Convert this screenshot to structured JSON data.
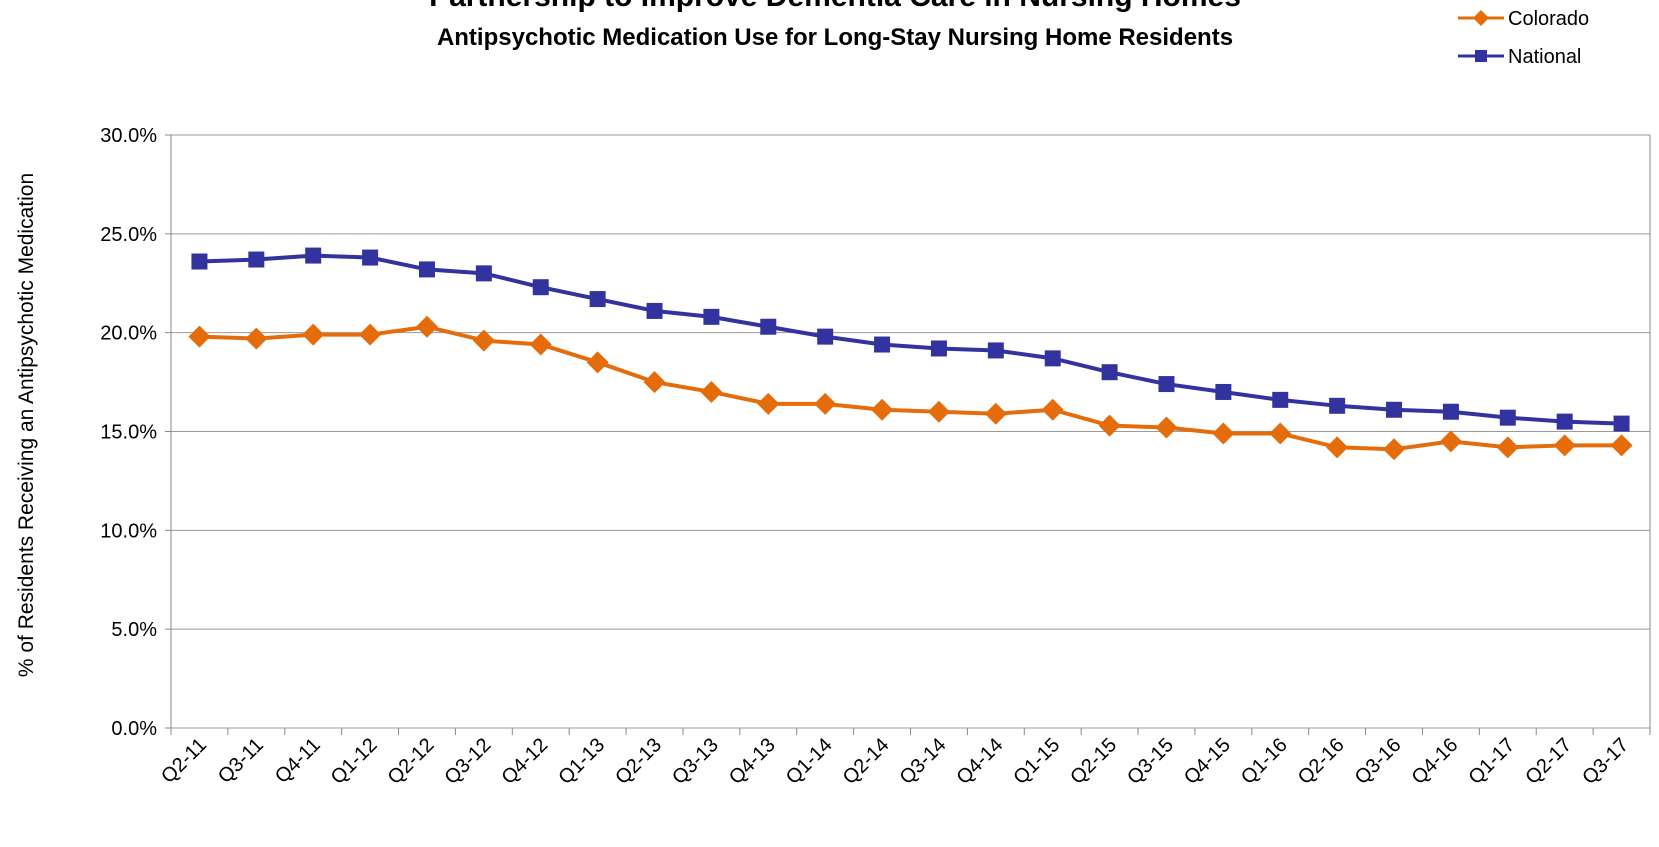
{
  "chart_data": {
    "type": "line",
    "title": "Partnership to Improve Dementia Care in Nursing Homes",
    "subtitle": "Antipsychotic Medication Use for Long-Stay Nursing Home Residents",
    "y_label": "% of  Residents Receiving an Antipsychotic Medication",
    "categories": [
      "Q2-11",
      "Q3-11",
      "Q4-11",
      "Q1-12",
      "Q2-12",
      "Q3-12",
      "Q4-12",
      "Q1-13",
      "Q2-13",
      "Q3-13",
      "Q4-13",
      "Q1-14",
      "Q2-14",
      "Q3-14",
      "Q4-14",
      "Q1-15",
      "Q2-15",
      "Q3-15",
      "Q4-15",
      "Q1-16",
      "Q2-16",
      "Q3-16",
      "Q4-16",
      "Q1-17",
      "Q2-17",
      "Q3-17"
    ],
    "series": [
      {
        "name": "Colorado",
        "color": "#e46c0a",
        "marker": "diamond",
        "values": [
          19.8,
          19.7,
          19.9,
          19.9,
          20.3,
          19.6,
          19.4,
          18.5,
          17.5,
          17.0,
          16.4,
          16.4,
          16.1,
          16.0,
          15.9,
          16.1,
          15.3,
          15.2,
          14.9,
          14.9,
          14.2,
          14.1,
          14.5,
          14.2,
          14.3,
          14.3
        ]
      },
      {
        "name": "National",
        "color": "#3333a0",
        "marker": "square",
        "values": [
          23.6,
          23.7,
          23.9,
          23.8,
          23.2,
          23.0,
          22.3,
          21.7,
          21.1,
          20.8,
          20.3,
          19.8,
          19.4,
          19.2,
          19.1,
          18.7,
          18.0,
          17.4,
          17.0,
          16.6,
          16.3,
          16.1,
          16.0,
          15.7,
          15.5,
          15.4
        ]
      }
    ],
    "ylim": [
      0,
      30
    ],
    "yticks": [
      {
        "value": 0,
        "label": "0.0%"
      },
      {
        "value": 5,
        "label": "5.0%"
      },
      {
        "value": 10,
        "label": "10.0%"
      },
      {
        "value": 15,
        "label": "15.0%"
      },
      {
        "value": 20,
        "label": "20.0%"
      },
      {
        "value": 25,
        "label": "25.0%"
      },
      {
        "value": 30,
        "label": "30.0%"
      }
    ],
    "grid": true,
    "legend": "top-right"
  }
}
